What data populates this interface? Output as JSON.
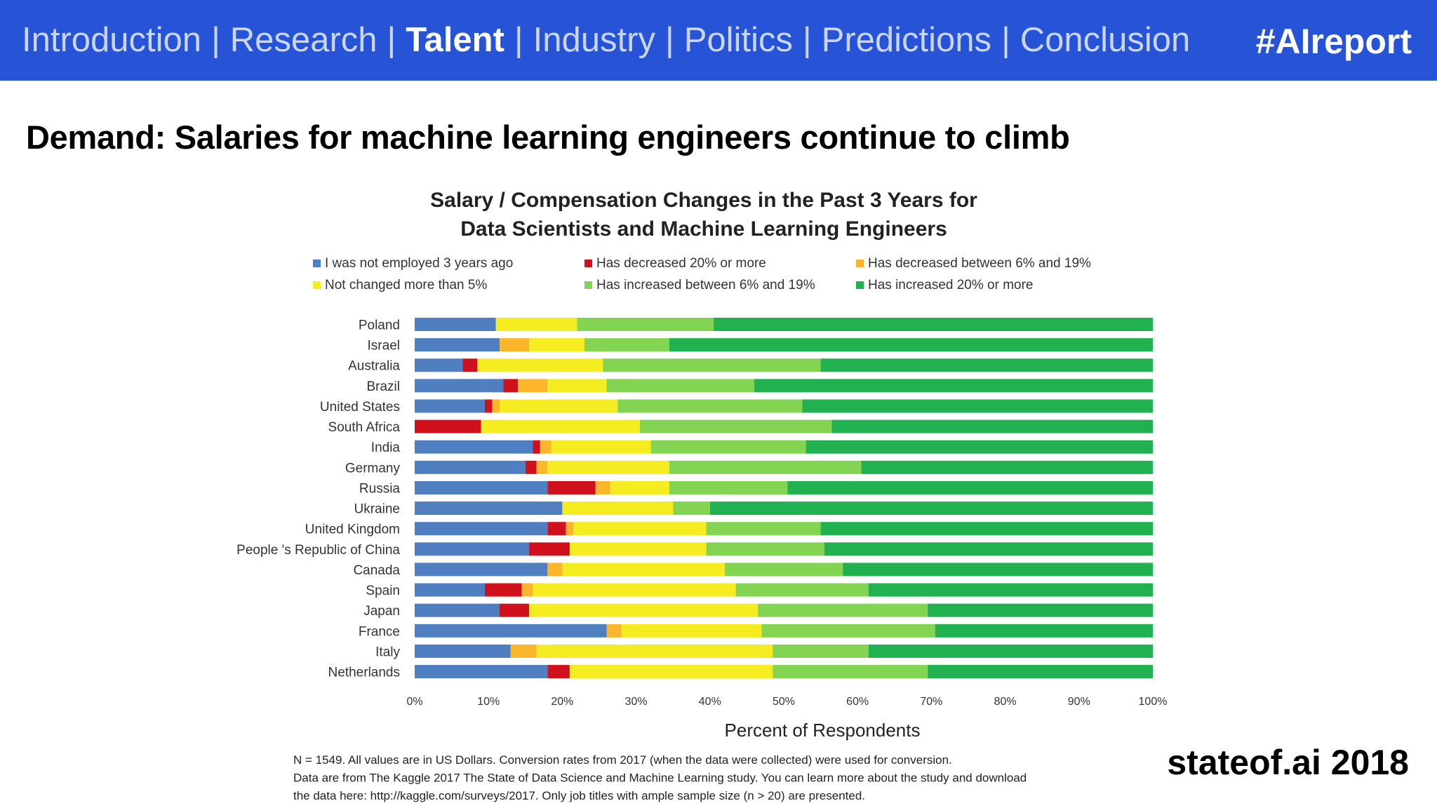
{
  "nav": {
    "items": [
      {
        "label": "Introduction",
        "active": false
      },
      {
        "label": "Research",
        "active": false
      },
      {
        "label": "Talent",
        "active": true
      },
      {
        "label": "Industry",
        "active": false
      },
      {
        "label": "Politics",
        "active": false
      },
      {
        "label": "Predictions",
        "active": false
      },
      {
        "label": "Conclusion",
        "active": false
      }
    ],
    "separator": "|",
    "hashtag": "#AIreport"
  },
  "slide": {
    "title": "Demand: Salaries for machine learning engineers continue to climb",
    "brand": "stateof.ai 2018"
  },
  "footnote": [
    "N = 1549. All values are in US Dollars. Conversion rates from 2017 (when the data were collected) were used for conversion.",
    "Data are from The Kaggle 2017 The State of Data Science and Machine Learning study. You can learn more about the study and download",
    "the data here: http://kaggle.com/surveys/2017. Only job titles with ample sample size (n > 20) are presented."
  ],
  "chart_data": {
    "type": "bar",
    "orientation": "horizontal",
    "stacked": true,
    "title_lines": [
      "Salary / Compensation Changes in the Past 3 Years for",
      "Data Scientists and Machine Learning Engineers"
    ],
    "xlabel": "Percent of Respondents",
    "ylabel": "",
    "xlim": [
      0,
      100
    ],
    "x_ticks": [
      "0%",
      "10%",
      "20%",
      "30%",
      "40%",
      "50%",
      "60%",
      "70%",
      "80%",
      "90%",
      "100%"
    ],
    "grid": false,
    "legend_position": "top",
    "categories": [
      "Poland",
      "Israel",
      "Australia",
      "Brazil",
      "United States",
      "South Africa",
      "India",
      "Germany",
      "Russia",
      "Ukraine",
      "United Kingdom",
      "People 's Republic of China",
      "Canada",
      "Spain",
      "Japan",
      "France",
      "Italy",
      "Netherlands"
    ],
    "series": [
      {
        "name": "I was not employed 3 years ago",
        "color": "#4f7ec1",
        "values": [
          11,
          11.5,
          6.5,
          12,
          9.5,
          0,
          16,
          15,
          18,
          20,
          18,
          15.5,
          18,
          9.5,
          11.5,
          26,
          13,
          18
        ]
      },
      {
        "name": "Has decreased 20% or more",
        "color": "#d0111d",
        "values": [
          0,
          0,
          2,
          2,
          1,
          9,
          1,
          1.5,
          6.5,
          0,
          2.5,
          5.5,
          0,
          5,
          4,
          0,
          0,
          3
        ]
      },
      {
        "name": "Has decreased between 6% and 19%",
        "color": "#fbb62b",
        "values": [
          0,
          4,
          0,
          4,
          1,
          0,
          1.5,
          1.5,
          2,
          0,
          1,
          0,
          2,
          1.5,
          0,
          2,
          3.5,
          0
        ]
      },
      {
        "name": "Not changed more than 5%",
        "color": "#f5ec21",
        "values": [
          11,
          7.5,
          17,
          8,
          16,
          21.5,
          13.5,
          16.5,
          8,
          15,
          18,
          18.5,
          22,
          27.5,
          31,
          19,
          32,
          27.5
        ]
      },
      {
        "name": "Has increased between 6% and 19%",
        "color": "#83d453",
        "values": [
          18.5,
          11.5,
          29.5,
          20,
          25,
          26,
          21,
          26,
          16,
          5,
          15.5,
          16,
          16,
          18,
          23,
          23.5,
          13,
          21
        ]
      },
      {
        "name": "Has increased 20% or more",
        "color": "#21b150",
        "values": [
          59.5,
          65.5,
          45,
          54,
          47.5,
          43.5,
          47,
          39.5,
          49.5,
          60,
          45,
          44.5,
          42,
          38.5,
          30.5,
          29.5,
          38.5,
          30.5
        ]
      }
    ],
    "legend_order": [
      0,
      1,
      2,
      3,
      4,
      5
    ]
  }
}
